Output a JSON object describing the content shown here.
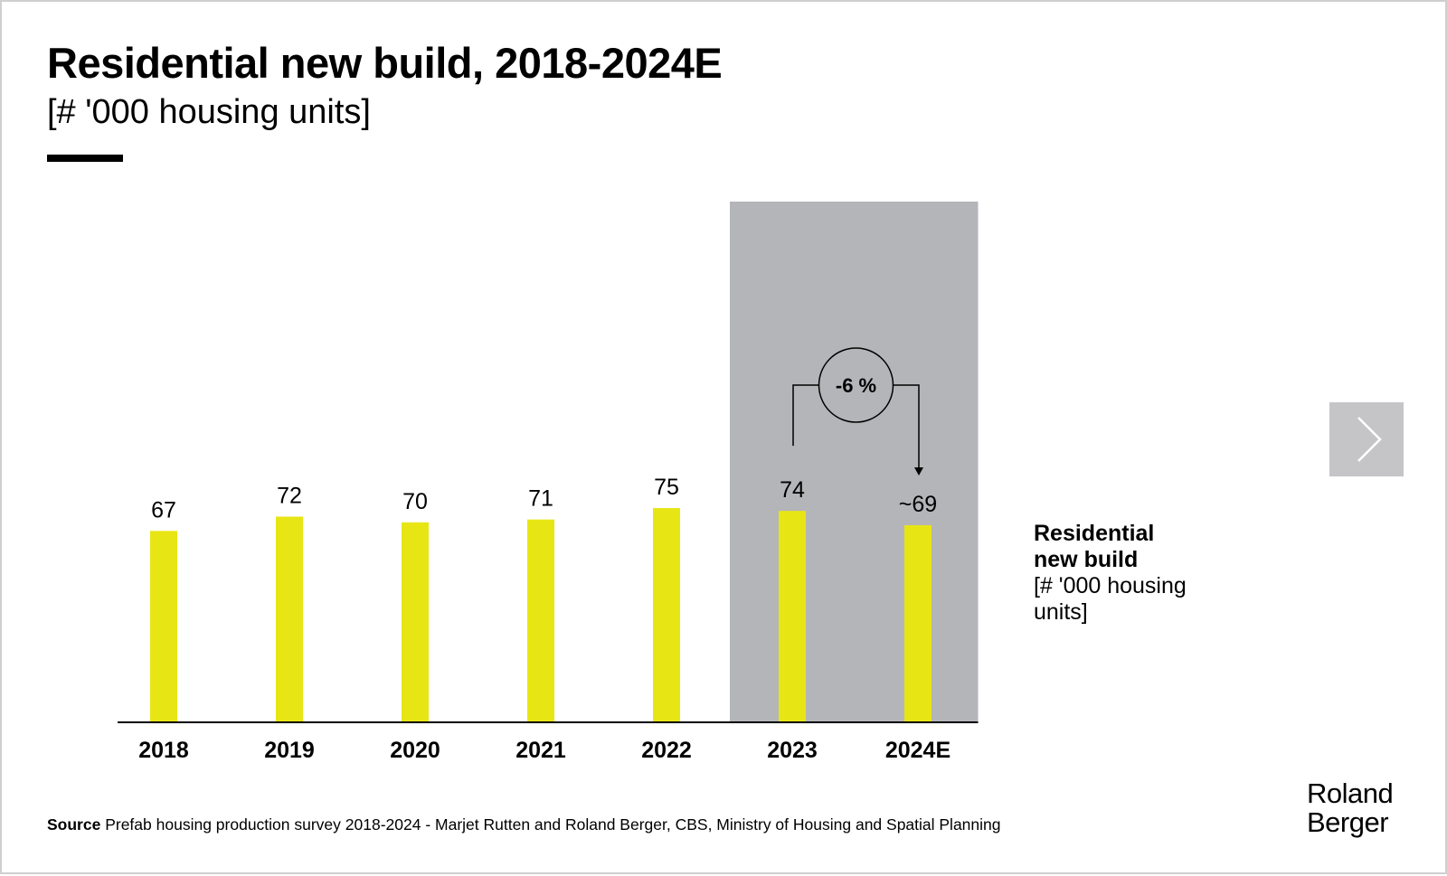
{
  "header": {
    "title": "Residential new build, 2018-2024E",
    "subtitle": "[# '000 housing units]"
  },
  "chart_data": {
    "type": "bar",
    "categories": [
      "2018",
      "2019",
      "2020",
      "2021",
      "2022",
      "2023",
      "2024E"
    ],
    "values": [
      67,
      72,
      70,
      71,
      75,
      74,
      69
    ],
    "data_labels": [
      "67",
      "72",
      "70",
      "71",
      "75",
      "74",
      "~69"
    ],
    "ylim": [
      0,
      75
    ],
    "grid": false,
    "highlighted_categories": [
      "2023",
      "2024E"
    ],
    "annotation": {
      "from": "2023",
      "to": "2024E",
      "label": "-6 %"
    },
    "colors": {
      "bar": "#e8e515",
      "highlight_band": "#b4b5b8",
      "axis": "#000000"
    }
  },
  "legend": {
    "name_line1": "Residential",
    "name_line2": "new build",
    "unit_line1": "[# '000 housing",
    "unit_line2": "units]"
  },
  "navigation": {
    "next_icon": "chevron-right-icon"
  },
  "footer": {
    "source_label": "Source",
    "source_text": "Prefab housing production survey 2018-2024 - Marjet Rutten and Roland Berger, CBS, Ministry of Housing and Spatial Planning"
  },
  "brand": {
    "logo_line1": "Roland",
    "logo_line2": "Berger"
  }
}
